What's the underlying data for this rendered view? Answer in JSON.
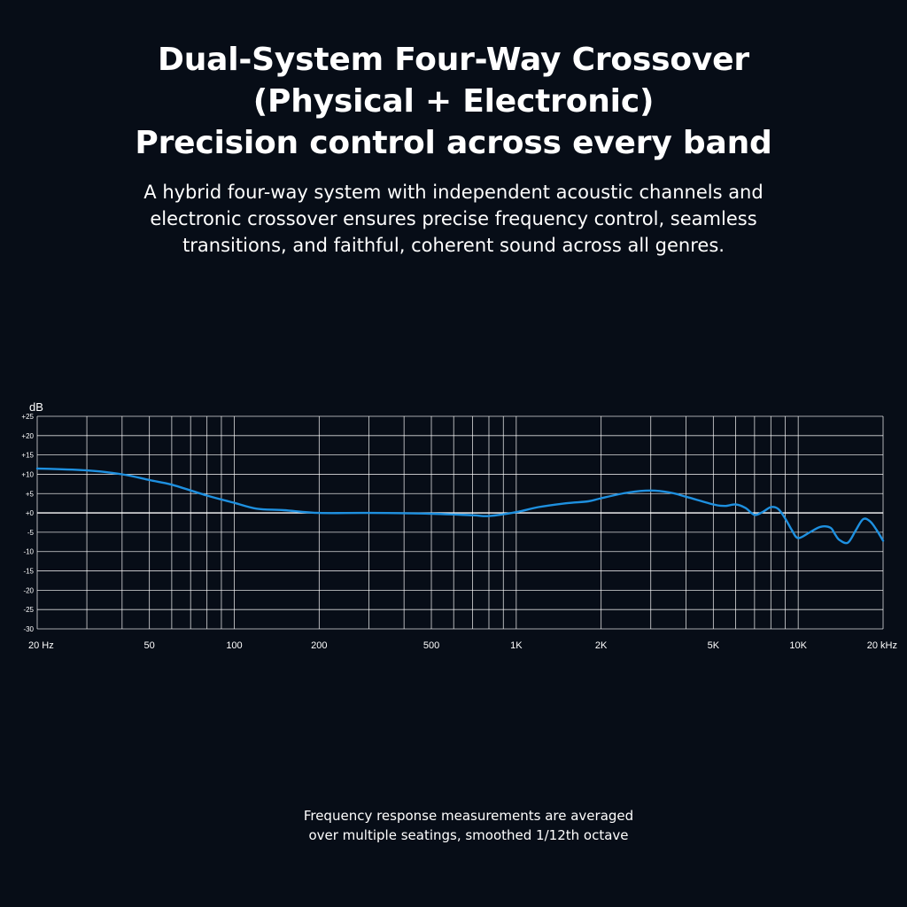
{
  "heading": {
    "lines": [
      "Dual-System Four-Way Crossover",
      "(Physical + Electronic)",
      "Precision control across every band"
    ]
  },
  "description": {
    "lines": [
      "A hybrid four-way system with independent acoustic channels and",
      "electronic crossover ensures precise frequency control, seamless",
      "transitions, and faithful, coherent sound across all genres."
    ]
  },
  "footnote": {
    "lines": [
      "Frequency response measurements are averaged",
      "over multiple seatings, smoothed 1/12th octave"
    ]
  },
  "chart_data": {
    "type": "line",
    "ylabel": "dB",
    "xlabel": "",
    "xscale": "log",
    "xlim": [
      20,
      20000
    ],
    "ylim": [
      -30,
      25
    ],
    "grid": true,
    "y_ticks": [
      {
        "value": 25,
        "label": "+25"
      },
      {
        "value": 20,
        "label": "+20"
      },
      {
        "value": 15,
        "label": "+15"
      },
      {
        "value": 10,
        "label": "+10"
      },
      {
        "value": 5,
        "label": "+5"
      },
      {
        "value": 0,
        "label": "+0"
      },
      {
        "value": -5,
        "label": "-5"
      },
      {
        "value": -10,
        "label": "-10"
      },
      {
        "value": -15,
        "label": "-15"
      },
      {
        "value": -20,
        "label": "-20"
      },
      {
        "value": -25,
        "label": "-25"
      },
      {
        "value": -30,
        "label": "-30"
      }
    ],
    "x_ticks": [
      {
        "value": 20,
        "label": "20 Hz"
      },
      {
        "value": 50,
        "label": "50"
      },
      {
        "value": 100,
        "label": "100"
      },
      {
        "value": 200,
        "label": "200"
      },
      {
        "value": 500,
        "label": "500"
      },
      {
        "value": 1000,
        "label": "1K"
      },
      {
        "value": 2000,
        "label": "2K"
      },
      {
        "value": 5000,
        "label": "5K"
      },
      {
        "value": 10000,
        "label": "10K"
      },
      {
        "value": 20000,
        "label": "20 kHz"
      }
    ],
    "x_gridlines": [
      20,
      30,
      40,
      50,
      60,
      70,
      80,
      90,
      100,
      200,
      300,
      400,
      500,
      600,
      700,
      800,
      900,
      1000,
      2000,
      3000,
      4000,
      5000,
      6000,
      7000,
      8000,
      9000,
      10000,
      20000
    ],
    "series": [
      {
        "color": "#1e90e0",
        "x": [
          20,
          30,
          40,
          50,
          60,
          80,
          100,
          120,
          150,
          200,
          300,
          500,
          700,
          800,
          1000,
          1200,
          1500,
          1800,
          2000,
          2500,
          3000,
          3500,
          4000,
          5000,
          5500,
          6000,
          6500,
          7000,
          7500,
          8000,
          8500,
          9000,
          9500,
          10000,
          11000,
          12000,
          13000,
          13500,
          14000,
          15000,
          16000,
          17000,
          18000,
          19000,
          20000
        ],
        "y": [
          11.5,
          11.0,
          10.0,
          8.5,
          7.3,
          4.5,
          2.6,
          1.1,
          0.7,
          0.0,
          0.0,
          -0.2,
          -0.6,
          -0.8,
          0.2,
          1.5,
          2.5,
          3.0,
          3.8,
          5.3,
          5.8,
          5.3,
          4.2,
          2.2,
          1.8,
          2.2,
          1.3,
          -0.5,
          0.3,
          1.5,
          1.0,
          -1.5,
          -4.5,
          -6.5,
          -5.0,
          -3.6,
          -3.8,
          -5.5,
          -7.0,
          -7.7,
          -4.5,
          -1.6,
          -2.2,
          -4.5,
          -7.2
        ]
      }
    ]
  }
}
